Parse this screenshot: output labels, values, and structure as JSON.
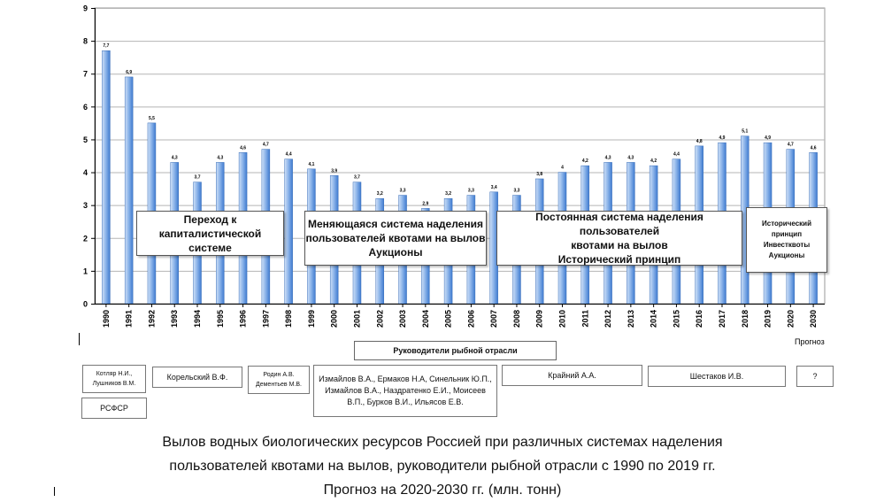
{
  "chart_data": {
    "type": "bar",
    "categories": [
      "1990",
      "1991",
      "1992",
      "1993",
      "1994",
      "1995",
      "1996",
      "1997",
      "1998",
      "1999",
      "2000",
      "2001",
      "2002",
      "2003",
      "2004",
      "2005",
      "2006",
      "2007",
      "2008",
      "2009",
      "2010",
      "2011",
      "2012",
      "2013",
      "2014",
      "2015",
      "2016",
      "2017",
      "2018",
      "2019",
      "2020",
      "2030"
    ],
    "values": [
      7.7,
      6.9,
      5.5,
      4.3,
      3.7,
      4.3,
      4.6,
      4.7,
      4.4,
      4.1,
      3.9,
      3.7,
      3.2,
      3.3,
      2.9,
      3.2,
      3.3,
      3.4,
      3.3,
      3.8,
      4,
      4.2,
      4.3,
      4.3,
      4.2,
      4.4,
      4.8,
      4.9,
      5.1,
      4.9,
      4.7,
      4.6
    ],
    "value_labels": [
      "7,7",
      "6,9",
      "5,5",
      "4,3",
      "3,7",
      "4,3",
      "4,6",
      "4,7",
      "4,4",
      "4,1",
      "3,9",
      "3,7",
      "3,2",
      "3,3",
      "2,9",
      "3,2",
      "3,3",
      "3,4",
      "3,3",
      "3,8",
      "4",
      "4,2",
      "4,3",
      "4,3",
      "4,2",
      "4,4",
      "4,8",
      "4,9",
      "5,1",
      "4,9",
      "4,7",
      "4,6"
    ],
    "ylim": [
      0,
      9
    ],
    "yticks": [
      0,
      1,
      2,
      3,
      4,
      5,
      6,
      7,
      8,
      9
    ],
    "grid": true,
    "bar_color": "#5b8fd6",
    "bar_highlight": "#cfe0f7",
    "forecast_label": "Прогноз",
    "periods": [
      {
        "lines": [
          "Переход к",
          "капиталистической системе"
        ]
      },
      {
        "lines": [
          "Меняющаяся система наделения",
          "пользователей квотами на вылов",
          "Аукционы"
        ]
      },
      {
        "lines": [
          "Постоянная система наделения пользователей",
          "квотами на вылов",
          "Исторический принцип"
        ]
      },
      {
        "lines": [
          "Исторический",
          "принцип",
          "Инвестквоты",
          "Аукционы"
        ]
      }
    ]
  },
  "leaders_title": "Руководители рыбной отрасли",
  "leaders": [
    {
      "lines": [
        "Котляр Н.И.,",
        "Лушников В.М."
      ]
    },
    {
      "lines": [
        "Корельский В.Ф."
      ]
    },
    {
      "lines": [
        "Родин А.В.",
        "Дементьев М.В."
      ]
    },
    {
      "lines": [
        "Измайлов В.А., Ермаков Н.А, Синельник Ю.П.,",
        "Измайлов В.А., Наздратенко Е.И., Моисеев",
        "В.П., Бурков В.И., Ильясов Е.В."
      ]
    },
    {
      "lines": [
        "Крайний А.А."
      ]
    },
    {
      "lines": [
        "Шестаков И.В."
      ]
    },
    {
      "lines": [
        "?"
      ]
    }
  ],
  "rsfsr_label": "РСФСР",
  "caption": [
    "Вылов водных биологических ресурсов Россией при различных системах наделения",
    "пользователей квотами на вылов, руководители рыбной отрасли с 1990 по 2019 гг.",
    "Прогноз на 2020-2030 гг. (млн. тонн)"
  ]
}
